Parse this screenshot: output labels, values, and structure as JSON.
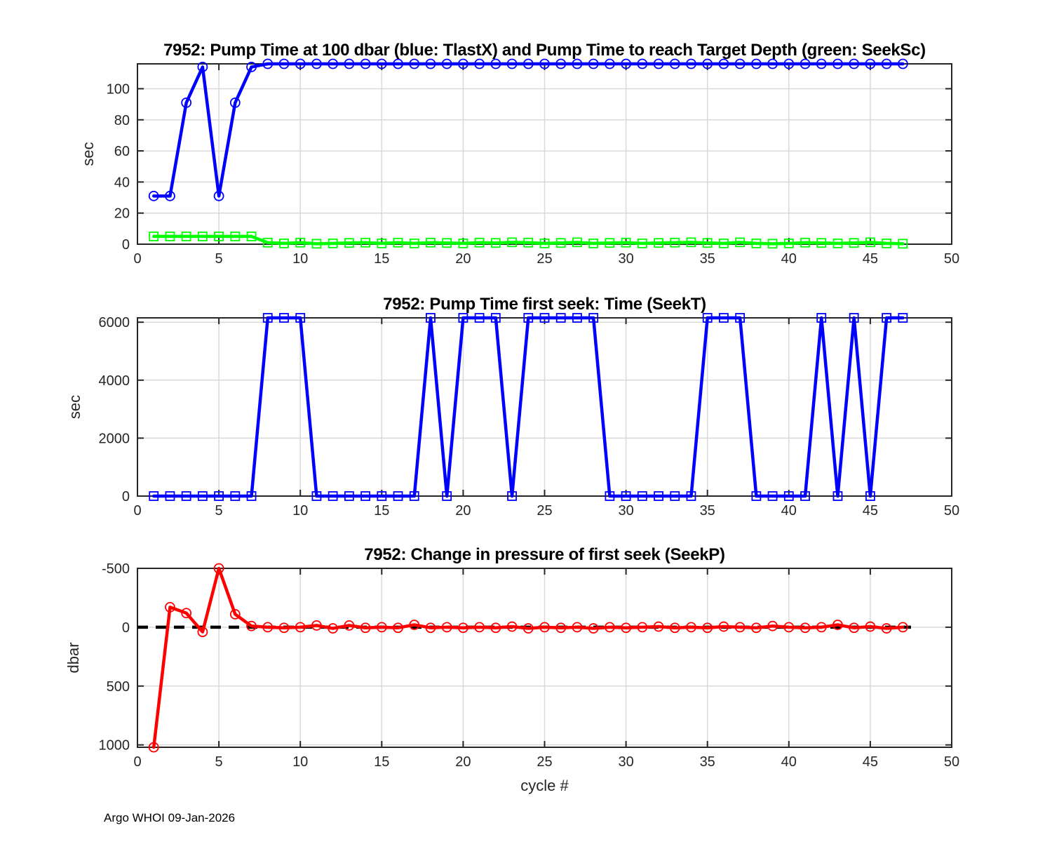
{
  "figure": {
    "footer": "Argo WHOI 09-Jan-2026",
    "background": "#ffffff",
    "axis_color": "#262626",
    "grid_color": "#d9d9d9",
    "title_color": "#000000"
  },
  "chart_data": [
    {
      "type": "line",
      "title": "7952:  Pump Time at 100 dbar (blue: TlastX) and Pump Time to reach Target Depth (green: SeekSc)",
      "ylabel": "sec",
      "xlabel": "",
      "xlim": [
        0,
        50
      ],
      "ylim": [
        0,
        116
      ],
      "y_reversed": false,
      "grid": true,
      "xticks": [
        0,
        5,
        10,
        15,
        20,
        25,
        30,
        35,
        40,
        45,
        50
      ],
      "yticks": [
        0,
        20,
        40,
        60,
        80,
        100
      ],
      "x": [
        1,
        2,
        3,
        4,
        5,
        6,
        7,
        8,
        9,
        10,
        11,
        12,
        13,
        14,
        15,
        16,
        17,
        18,
        19,
        20,
        21,
        22,
        23,
        24,
        25,
        26,
        27,
        28,
        29,
        30,
        31,
        32,
        33,
        34,
        35,
        36,
        37,
        38,
        39,
        40,
        41,
        42,
        43,
        44,
        45,
        46,
        47
      ],
      "series": [
        {
          "name": "TlastX",
          "color": "#0000ff",
          "marker": "circle",
          "values": [
            31,
            31,
            91,
            114,
            31,
            91,
            114,
            116,
            116,
            116,
            116,
            116,
            116,
            116,
            116,
            116,
            116,
            116,
            116,
            116,
            116,
            116,
            116,
            116,
            116,
            116,
            116,
            116,
            116,
            116,
            116,
            116,
            116,
            116,
            116,
            116,
            116,
            116,
            116,
            116,
            116,
            116,
            116,
            116,
            116,
            116,
            116
          ]
        },
        {
          "name": "SeekSc",
          "color": "#00ff00",
          "marker": "square",
          "values": [
            5,
            5,
            5,
            5,
            5,
            5,
            5,
            1,
            0.5,
            1,
            0.3,
            0.5,
            0.8,
            1,
            0.5,
            1,
            0.5,
            1,
            0.8,
            0.5,
            1,
            0.8,
            1.2,
            1,
            0.5,
            0.8,
            1.2,
            0.5,
            0.8,
            1,
            0.5,
            0.8,
            1,
            1.2,
            0.8,
            0.5,
            1.2,
            0.5,
            0.3,
            0.5,
            1,
            0.8,
            0.5,
            0.8,
            1.2,
            0.5,
            0.3
          ]
        }
      ]
    },
    {
      "type": "line",
      "title": "7952: Pump Time first seek: Time (SeekT)",
      "ylabel": "sec",
      "xlabel": "",
      "xlim": [
        0,
        50
      ],
      "ylim": [
        0,
        6150
      ],
      "y_reversed": false,
      "grid": true,
      "xticks": [
        0,
        5,
        10,
        15,
        20,
        25,
        30,
        35,
        40,
        45,
        50
      ],
      "yticks": [
        0,
        2000,
        4000,
        6000
      ],
      "x": [
        1,
        2,
        3,
        4,
        5,
        6,
        7,
        8,
        9,
        10,
        11,
        12,
        13,
        14,
        15,
        16,
        17,
        18,
        19,
        20,
        21,
        22,
        23,
        24,
        25,
        26,
        27,
        28,
        29,
        30,
        31,
        32,
        33,
        34,
        35,
        36,
        37,
        38,
        39,
        40,
        41,
        42,
        43,
        44,
        45,
        46,
        47
      ],
      "series": [
        {
          "name": "SeekT",
          "color": "#0000ff",
          "marker": "square",
          "values": [
            0,
            0,
            0,
            0,
            0,
            0,
            0,
            6150,
            6150,
            6150,
            0,
            0,
            0,
            0,
            0,
            0,
            0,
            6150,
            0,
            6150,
            6150,
            6150,
            0,
            6150,
            6150,
            6150,
            6150,
            6150,
            0,
            0,
            0,
            0,
            0,
            0,
            6150,
            6150,
            6150,
            0,
            0,
            0,
            0,
            6150,
            0,
            6150,
            0,
            6150,
            6150
          ]
        }
      ]
    },
    {
      "type": "line",
      "title": "7952: Change in pressure of first seek (SeekP)",
      "ylabel": "dbar",
      "xlabel": "cycle #",
      "xlim": [
        0,
        50
      ],
      "ylim": [
        -500,
        1020
      ],
      "y_reversed": true,
      "grid": true,
      "xticks": [
        0,
        5,
        10,
        15,
        20,
        25,
        30,
        35,
        40,
        45,
        50
      ],
      "yticks": [
        -500,
        0,
        500,
        1000
      ],
      "zero_line": {
        "style": "dashed",
        "color": "#000000",
        "x_span": [
          0,
          47.5
        ]
      },
      "x": [
        1,
        2,
        3,
        4,
        5,
        6,
        7,
        8,
        9,
        10,
        11,
        12,
        13,
        14,
        15,
        16,
        17,
        18,
        19,
        20,
        21,
        22,
        23,
        24,
        25,
        26,
        27,
        28,
        29,
        30,
        31,
        32,
        33,
        34,
        35,
        36,
        37,
        38,
        39,
        40,
        41,
        42,
        43,
        44,
        45,
        46,
        47
      ],
      "series": [
        {
          "name": "SeekP",
          "color": "#ff0000",
          "marker": "circle",
          "values": [
            1020,
            -170,
            -120,
            40,
            -500,
            -110,
            -10,
            0,
            5,
            0,
            -15,
            10,
            -15,
            5,
            0,
            5,
            -20,
            5,
            0,
            5,
            0,
            5,
            -5,
            10,
            0,
            5,
            0,
            10,
            0,
            5,
            0,
            -5,
            5,
            0,
            5,
            -5,
            0,
            5,
            -10,
            0,
            5,
            0,
            -20,
            5,
            -5,
            10,
            0
          ]
        }
      ]
    }
  ]
}
